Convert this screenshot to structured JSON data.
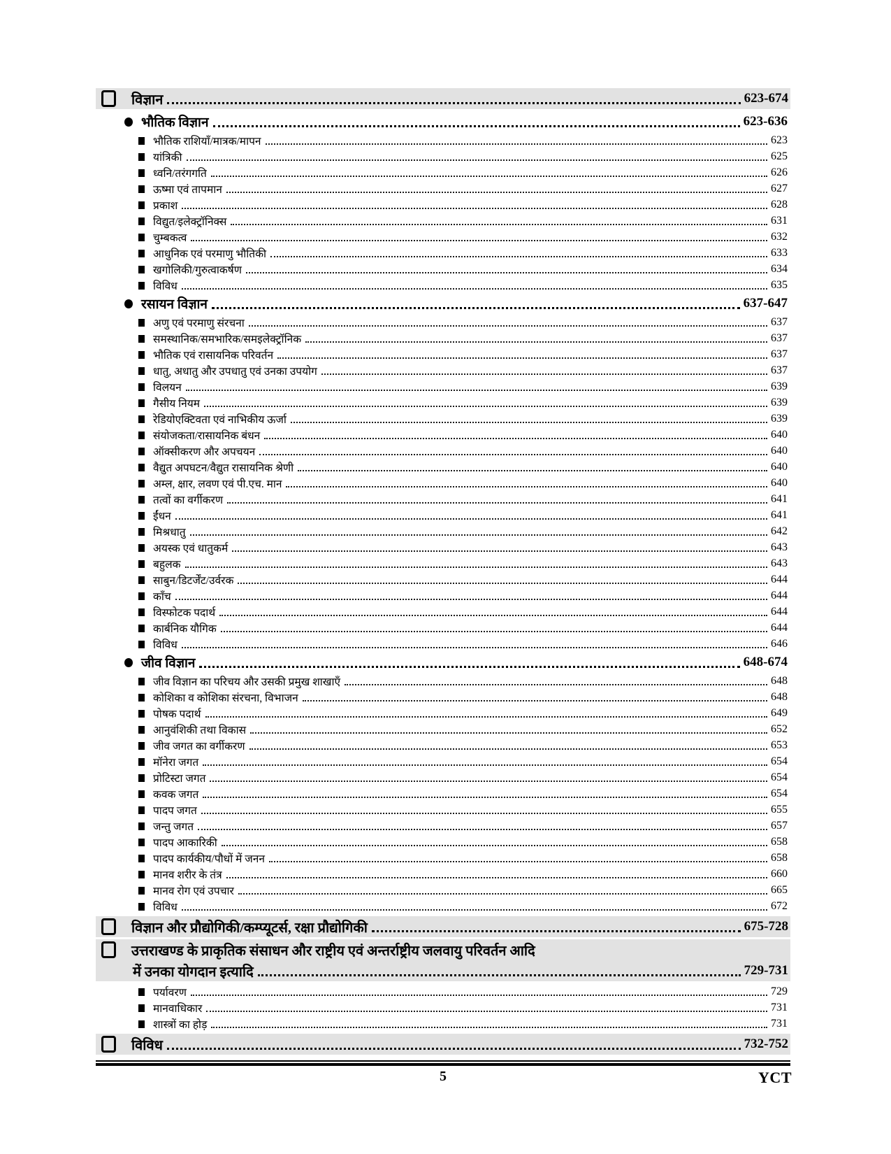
{
  "footer": {
    "page_number": "5",
    "brand": "YCT"
  },
  "colors": {
    "band": "#e2e2e2",
    "text": "#000000"
  },
  "icons": {
    "level1": "open-square-icon",
    "level2": "circle-bullet-icon",
    "level3": "square-bullet-icon"
  },
  "toc": {
    "rows": [
      {
        "level": 1,
        "label": "विज्ञान",
        "pages": "623-674"
      },
      {
        "level": 2,
        "label": "भौतिक विज्ञान",
        "pages": "623-636"
      },
      {
        "level": 3,
        "label": "भौतिक राशियाँ/मात्रक/मापन",
        "pages": "623"
      },
      {
        "level": 3,
        "label": "यांत्रिकी",
        "pages": "625"
      },
      {
        "level": 3,
        "label": "ध्वनि/तरंगगति",
        "pages": "626"
      },
      {
        "level": 3,
        "label": "ऊष्मा एवं तापमान",
        "pages": "627"
      },
      {
        "level": 3,
        "label": "प्रकाश",
        "pages": "628"
      },
      {
        "level": 3,
        "label": "विद्युत/इलेक्ट्रॉनिक्स",
        "pages": "631"
      },
      {
        "level": 3,
        "label": "चुम्बकत्व",
        "pages": "632"
      },
      {
        "level": 3,
        "label": "आधुनिक एवं परमाणु भौतिकी",
        "pages": "633"
      },
      {
        "level": 3,
        "label": "खगोलिकी/गुरुत्वाकर्षण",
        "pages": "634"
      },
      {
        "level": 3,
        "label": "विविध",
        "pages": "635"
      },
      {
        "level": 2,
        "label": "रसायन विज्ञान",
        "pages": "637-647"
      },
      {
        "level": 3,
        "label": "अणु एवं परमाणु संरचना",
        "pages": "637"
      },
      {
        "level": 3,
        "label": "समस्थानिक/समभारिक/समइलेक्ट्रॉनिक",
        "pages": "637"
      },
      {
        "level": 3,
        "label": "भौतिक एवं रासायनिक परिवर्तन",
        "pages": "637"
      },
      {
        "level": 3,
        "label": "धातु, अधातु और उपधातु एवं उनका उपयोग",
        "pages": "637"
      },
      {
        "level": 3,
        "label": "विलयन",
        "pages": "639"
      },
      {
        "level": 3,
        "label": "गैसीय नियम",
        "pages": "639"
      },
      {
        "level": 3,
        "label": "रेडियोएक्टिवता एवं नाभिकीय ऊर्जा",
        "pages": "639"
      },
      {
        "level": 3,
        "label": "संयोजकता/रासायनिक बंधन",
        "pages": "640"
      },
      {
        "level": 3,
        "label": "ऑक्सीकरण और अपचयन",
        "pages": "640"
      },
      {
        "level": 3,
        "label": "वैद्युत अपघटन/वैद्युत रासायनिक श्रेणी",
        "pages": "640"
      },
      {
        "level": 3,
        "label": "अम्ल, क्षार, लवण एवं पी.एच. मान",
        "pages": "640"
      },
      {
        "level": 3,
        "label": "तत्वों का वर्गीकरण",
        "pages": "641"
      },
      {
        "level": 3,
        "label": "ईंधन",
        "pages": "641"
      },
      {
        "level": 3,
        "label": "मिश्रधातु",
        "pages": "642"
      },
      {
        "level": 3,
        "label": "अयस्क एवं धातुकर्म",
        "pages": "643"
      },
      {
        "level": 3,
        "label": "बहुलक",
        "pages": "643"
      },
      {
        "level": 3,
        "label": "साबुन/डिटर्जेंट/उर्वरक",
        "pages": "644"
      },
      {
        "level": 3,
        "label": "काँच",
        "pages": "644"
      },
      {
        "level": 3,
        "label": "विस्फोटक पदार्थ",
        "pages": "644"
      },
      {
        "level": 3,
        "label": "कार्बनिक यौगिक",
        "pages": "644"
      },
      {
        "level": 3,
        "label": "विविध",
        "pages": "646"
      },
      {
        "level": 2,
        "label": "जीव विज्ञान",
        "pages": "648-674"
      },
      {
        "level": 3,
        "label": "जीव विज्ञान का परिचय और उसकी प्रमुख शाखाएँ",
        "pages": "648"
      },
      {
        "level": 3,
        "label": "कोशिका व कोशिका संरचना, विभाजन",
        "pages": "648"
      },
      {
        "level": 3,
        "label": "पोषक पदार्थ",
        "pages": "649"
      },
      {
        "level": 3,
        "label": "आनुवंशिकी तथा विकास",
        "pages": "652"
      },
      {
        "level": 3,
        "label": "जीव जगत का वर्गीकरण",
        "pages": "653"
      },
      {
        "level": 3,
        "label": "मॉनेरा जगत",
        "pages": "654"
      },
      {
        "level": 3,
        "label": "प्रोटिस्टा जगत",
        "pages": "654"
      },
      {
        "level": 3,
        "label": "कवक जगत",
        "pages": "654"
      },
      {
        "level": 3,
        "label": "पादप जगत",
        "pages": "655"
      },
      {
        "level": 3,
        "label": "जन्तु जगत",
        "pages": "657"
      },
      {
        "level": 3,
        "label": "पादप आकारिकी",
        "pages": "658"
      },
      {
        "level": 3,
        "label": "पादप कार्यकीय/पौधों में जनन",
        "pages": "658"
      },
      {
        "level": 3,
        "label": "मानव शरीर के तंत्र",
        "pages": "660"
      },
      {
        "level": 3,
        "label": "मानव रोग एवं उपचार",
        "pages": "665"
      },
      {
        "level": 3,
        "label": "विविध",
        "pages": "672"
      },
      {
        "level": 1,
        "label": "विज्ञान और प्रौद्योगिकी/कम्प्यूटर्स, रक्षा प्रौद्योगिकी",
        "pages": "675-728"
      },
      {
        "level": 1,
        "wrap": true,
        "label": "उत्तराखण्ड के प्राकृतिक संसाधन और राष्ट्रीय एवं अन्तर्राष्ट्रीय जलवायु परिवर्तन आदि",
        "label2": "में उनका योगदान इत्यादि",
        "pages": "729-731"
      },
      {
        "level": 3,
        "label": "पर्यावरण",
        "pages": "729"
      },
      {
        "level": 3,
        "label": "मानवाधिकार",
        "pages": "731"
      },
      {
        "level": 3,
        "label": "शास्त्रों का होड़",
        "pages": "731"
      },
      {
        "level": 1,
        "label": "विविध",
        "pages": "732-752"
      }
    ]
  }
}
